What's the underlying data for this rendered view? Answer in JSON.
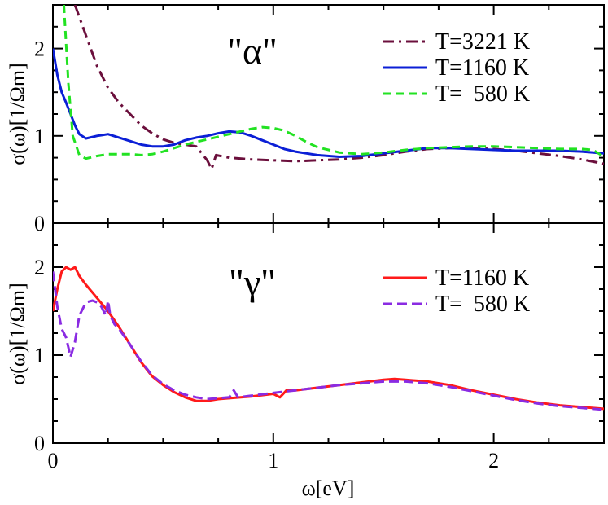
{
  "chart_data": [
    {
      "type": "line",
      "panel_label": "\"α\"",
      "ylabel": "σ(ω)[1/Ωm]",
      "xlabel": "",
      "xlim": [
        0,
        2.5
      ],
      "ylim": [
        0,
        2.5
      ],
      "y_ticks": [
        "0",
        "1",
        "2"
      ],
      "x_ticks": [],
      "legend_position": "top-right",
      "series": [
        {
          "name": "T=3221 K",
          "color": "#6b0f3c",
          "dash": "14 6 3 6",
          "points": [
            [
              0.1,
              2.5
            ],
            [
              0.15,
              2.15
            ],
            [
              0.2,
              1.8
            ],
            [
              0.25,
              1.55
            ],
            [
              0.3,
              1.38
            ],
            [
              0.35,
              1.25
            ],
            [
              0.4,
              1.12
            ],
            [
              0.45,
              1.03
            ],
            [
              0.5,
              0.96
            ],
            [
              0.55,
              0.92
            ],
            [
              0.6,
              0.9
            ],
            [
              0.65,
              0.88
            ],
            [
              0.7,
              0.72
            ],
            [
              0.72,
              0.62
            ],
            [
              0.74,
              0.78
            ],
            [
              0.8,
              0.75
            ],
            [
              0.9,
              0.73
            ],
            [
              1.0,
              0.72
            ],
            [
              1.1,
              0.71
            ],
            [
              1.2,
              0.72
            ],
            [
              1.3,
              0.73
            ],
            [
              1.4,
              0.75
            ],
            [
              1.5,
              0.78
            ],
            [
              1.6,
              0.82
            ],
            [
              1.7,
              0.85
            ],
            [
              1.8,
              0.86
            ],
            [
              1.9,
              0.86
            ],
            [
              2.0,
              0.85
            ],
            [
              2.1,
              0.83
            ],
            [
              2.2,
              0.8
            ],
            [
              2.3,
              0.77
            ],
            [
              2.4,
              0.73
            ],
            [
              2.5,
              0.68
            ]
          ]
        },
        {
          "name": "T=1160 K",
          "color": "#0b1fd6",
          "dash": "",
          "points": [
            [
              0.0,
              2.0
            ],
            [
              0.02,
              1.7
            ],
            [
              0.04,
              1.5
            ],
            [
              0.06,
              1.38
            ],
            [
              0.08,
              1.25
            ],
            [
              0.1,
              1.12
            ],
            [
              0.12,
              1.02
            ],
            [
              0.15,
              0.97
            ],
            [
              0.2,
              1.0
            ],
            [
              0.25,
              1.02
            ],
            [
              0.3,
              0.98
            ],
            [
              0.35,
              0.94
            ],
            [
              0.4,
              0.9
            ],
            [
              0.45,
              0.88
            ],
            [
              0.5,
              0.88
            ],
            [
              0.55,
              0.9
            ],
            [
              0.6,
              0.95
            ],
            [
              0.65,
              0.98
            ],
            [
              0.7,
              1.0
            ],
            [
              0.75,
              1.03
            ],
            [
              0.8,
              1.05
            ],
            [
              0.85,
              1.04
            ],
            [
              0.9,
              1.0
            ],
            [
              0.95,
              0.95
            ],
            [
              1.0,
              0.9
            ],
            [
              1.05,
              0.85
            ],
            [
              1.1,
              0.82
            ],
            [
              1.2,
              0.78
            ],
            [
              1.3,
              0.76
            ],
            [
              1.4,
              0.77
            ],
            [
              1.5,
              0.8
            ],
            [
              1.6,
              0.83
            ],
            [
              1.7,
              0.86
            ],
            [
              1.8,
              0.86
            ],
            [
              1.9,
              0.85
            ],
            [
              2.0,
              0.84
            ],
            [
              2.1,
              0.83
            ],
            [
              2.2,
              0.83
            ],
            [
              2.3,
              0.83
            ],
            [
              2.4,
              0.82
            ],
            [
              2.5,
              0.8
            ]
          ]
        },
        {
          "name": "T=  580 K",
          "color": "#22e222",
          "dash": "10 6",
          "points": [
            [
              0.05,
              2.5
            ],
            [
              0.07,
              1.6
            ],
            [
              0.09,
              1.0
            ],
            [
              0.12,
              0.78
            ],
            [
              0.15,
              0.74
            ],
            [
              0.2,
              0.77
            ],
            [
              0.25,
              0.79
            ],
            [
              0.3,
              0.79
            ],
            [
              0.35,
              0.79
            ],
            [
              0.4,
              0.78
            ],
            [
              0.45,
              0.79
            ],
            [
              0.5,
              0.82
            ],
            [
              0.55,
              0.86
            ],
            [
              0.6,
              0.9
            ],
            [
              0.65,
              0.93
            ],
            [
              0.7,
              0.96
            ],
            [
              0.75,
              0.99
            ],
            [
              0.8,
              1.02
            ],
            [
              0.85,
              1.05
            ],
            [
              0.9,
              1.08
            ],
            [
              0.95,
              1.1
            ],
            [
              1.0,
              1.09
            ],
            [
              1.05,
              1.06
            ],
            [
              1.1,
              1.0
            ],
            [
              1.15,
              0.93
            ],
            [
              1.2,
              0.87
            ],
            [
              1.3,
              0.81
            ],
            [
              1.4,
              0.79
            ],
            [
              1.5,
              0.81
            ],
            [
              1.6,
              0.84
            ],
            [
              1.7,
              0.86
            ],
            [
              1.8,
              0.87
            ],
            [
              1.9,
              0.88
            ],
            [
              2.0,
              0.88
            ],
            [
              2.1,
              0.87
            ],
            [
              2.2,
              0.86
            ],
            [
              2.3,
              0.85
            ],
            [
              2.4,
              0.85
            ],
            [
              2.45,
              0.84
            ],
            [
              2.5,
              0.76
            ]
          ]
        }
      ]
    },
    {
      "type": "line",
      "panel_label": "\"γ\"",
      "ylabel": "σ(ω)[1/Ωm]",
      "xlabel": "ω[eV]",
      "xlim": [
        0,
        2.5
      ],
      "ylim": [
        0,
        2.5
      ],
      "y_ticks": [
        "0",
        "1",
        "2"
      ],
      "x_ticks": [
        "0",
        "1",
        "2"
      ],
      "legend_position": "top-right",
      "series": [
        {
          "name": "T=1160 K",
          "color": "#ff1a1a",
          "dash": "",
          "points": [
            [
              0.0,
              1.5
            ],
            [
              0.02,
              1.75
            ],
            [
              0.04,
              1.95
            ],
            [
              0.06,
              2.0
            ],
            [
              0.08,
              1.97
            ],
            [
              0.1,
              2.0
            ],
            [
              0.12,
              1.9
            ],
            [
              0.15,
              1.8
            ],
            [
              0.2,
              1.65
            ],
            [
              0.25,
              1.5
            ],
            [
              0.3,
              1.32
            ],
            [
              0.35,
              1.12
            ],
            [
              0.4,
              0.92
            ],
            [
              0.45,
              0.76
            ],
            [
              0.5,
              0.66
            ],
            [
              0.55,
              0.58
            ],
            [
              0.6,
              0.52
            ],
            [
              0.65,
              0.48
            ],
            [
              0.7,
              0.48
            ],
            [
              0.75,
              0.5
            ],
            [
              0.8,
              0.51
            ],
            [
              0.9,
              0.53
            ],
            [
              1.0,
              0.56
            ],
            [
              1.03,
              0.52
            ],
            [
              1.06,
              0.6
            ],
            [
              1.1,
              0.6
            ],
            [
              1.2,
              0.63
            ],
            [
              1.3,
              0.66
            ],
            [
              1.4,
              0.69
            ],
            [
              1.5,
              0.72
            ],
            [
              1.55,
              0.73
            ],
            [
              1.6,
              0.72
            ],
            [
              1.7,
              0.7
            ],
            [
              1.8,
              0.66
            ],
            [
              1.9,
              0.6
            ],
            [
              2.0,
              0.55
            ],
            [
              2.1,
              0.5
            ],
            [
              2.2,
              0.46
            ],
            [
              2.3,
              0.43
            ],
            [
              2.4,
              0.41
            ],
            [
              2.5,
              0.39
            ]
          ]
        },
        {
          "name": "T=  580 K",
          "color": "#8a2be2",
          "dash": "12 6",
          "points": [
            [
              0.0,
              1.95
            ],
            [
              0.02,
              1.55
            ],
            [
              0.04,
              1.3
            ],
            [
              0.06,
              1.2
            ],
            [
              0.08,
              0.98
            ],
            [
              0.1,
              1.15
            ],
            [
              0.12,
              1.45
            ],
            [
              0.15,
              1.6
            ],
            [
              0.18,
              1.62
            ],
            [
              0.2,
              1.6
            ],
            [
              0.22,
              1.55
            ],
            [
              0.24,
              1.45
            ],
            [
              0.25,
              1.62
            ],
            [
              0.26,
              1.45
            ],
            [
              0.28,
              1.35
            ],
            [
              0.3,
              1.3
            ],
            [
              0.35,
              1.12
            ],
            [
              0.4,
              0.93
            ],
            [
              0.45,
              0.77
            ],
            [
              0.5,
              0.67
            ],
            [
              0.55,
              0.6
            ],
            [
              0.6,
              0.55
            ],
            [
              0.65,
              0.52
            ],
            [
              0.7,
              0.5
            ],
            [
              0.75,
              0.51
            ],
            [
              0.8,
              0.52
            ],
            [
              0.82,
              0.6
            ],
            [
              0.84,
              0.52
            ],
            [
              0.9,
              0.54
            ],
            [
              1.0,
              0.57
            ],
            [
              1.1,
              0.6
            ],
            [
              1.2,
              0.63
            ],
            [
              1.3,
              0.66
            ],
            [
              1.4,
              0.68
            ],
            [
              1.5,
              0.7
            ],
            [
              1.6,
              0.7
            ],
            [
              1.7,
              0.68
            ],
            [
              1.8,
              0.64
            ],
            [
              1.9,
              0.59
            ],
            [
              2.0,
              0.54
            ],
            [
              2.1,
              0.49
            ],
            [
              2.2,
              0.45
            ],
            [
              2.3,
              0.42
            ],
            [
              2.4,
              0.4
            ],
            [
              2.5,
              0.38
            ]
          ]
        }
      ]
    }
  ]
}
